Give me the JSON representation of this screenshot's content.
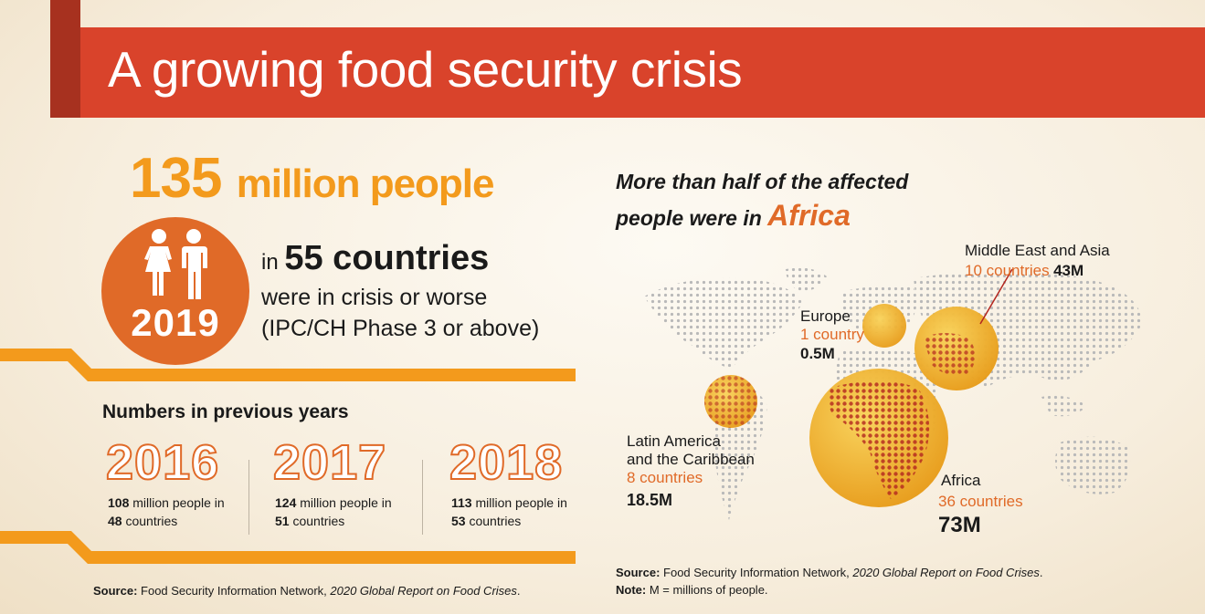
{
  "header": {
    "title": "A growing food security crisis"
  },
  "headline": {
    "number": "135",
    "unit": "million people",
    "year": "2019",
    "in_prefix": "in",
    "countries": "55 countries",
    "line1": "were in crisis or worse",
    "line2": "(IPC/CH Phase 3 or above)"
  },
  "previous": {
    "heading": "Numbers in previous years",
    "years": [
      {
        "year": "2016",
        "people": "108",
        "people_suffix": " million people in",
        "countries": "48",
        "countries_suffix": " countries"
      },
      {
        "year": "2017",
        "people": "124",
        "people_suffix": " million people in",
        "countries": "51",
        "countries_suffix": " countries"
      },
      {
        "year": "2018",
        "people": "113",
        "people_suffix": " million people in",
        "countries": "53",
        "countries_suffix": " countries"
      }
    ]
  },
  "source_left": {
    "label": "Source:",
    "text": " Food Security Information Network, ",
    "italic": "2020 Global Report on Food Crises",
    "end": "."
  },
  "map": {
    "headline_line1": "More than half of the affected",
    "headline_line2_prefix": "people were in ",
    "headline_emphasis": "Africa",
    "regions": [
      {
        "id": "mea",
        "name": "Middle East and Asia",
        "count": "10 countries",
        "value": "43M"
      },
      {
        "id": "europe",
        "name": "Europe",
        "count": "1 country",
        "value": "0.5M"
      },
      {
        "id": "latam",
        "name_line1": "Latin America",
        "name_line2": "and the Caribbean",
        "count": "8 countries",
        "value": "18.5M"
      },
      {
        "id": "africa",
        "name": "Africa",
        "count": "36 countries",
        "value": "73M"
      }
    ]
  },
  "source_right": {
    "label": "Source:",
    "text": " Food Security Information Network, ",
    "italic": "2020 Global Report on Food Crises",
    "end": ".",
    "note_label": "Note:",
    "note_text": " M = millions of people."
  },
  "colors": {
    "banner": "#d9432b",
    "accent_orange": "#f39a1c",
    "deep_orange": "#e06a28",
    "bubble_gold": "#f1b429"
  }
}
